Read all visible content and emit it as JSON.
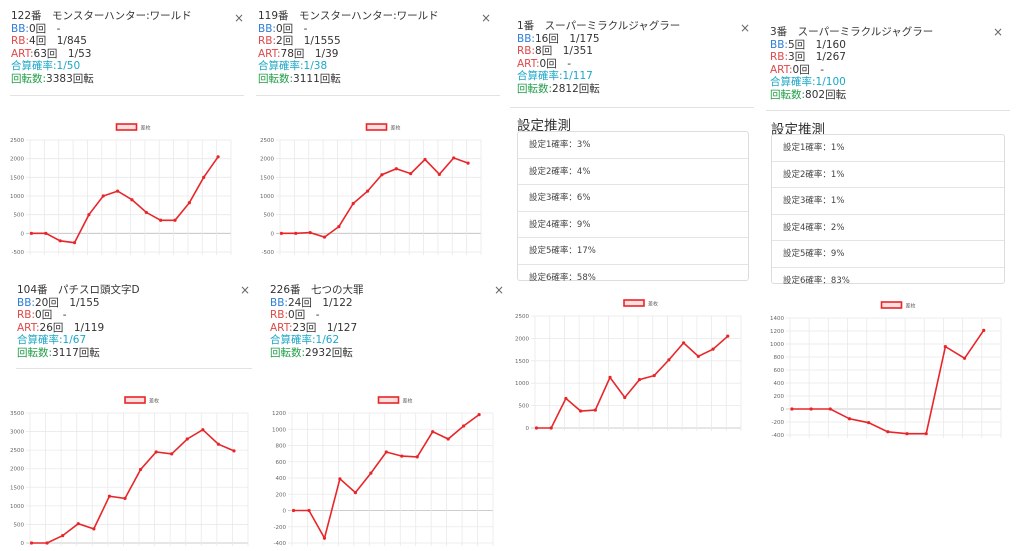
{
  "colors": {
    "bb": "#2e7dd8",
    "rb": "#e04848",
    "art": "#e04848",
    "prob": "#1aa7c8",
    "spin": "#1f9c46",
    "line": "#e8262a",
    "grid": "#e9e9e9"
  },
  "icons": {
    "close": "close-icon"
  },
  "cards": [
    {
      "title": "122番　モンスターハンター:ワールド",
      "bb_label": "BB:",
      "bb_value": "0回　-",
      "rb_label": "RB:",
      "rb_value": "4回　1/845",
      "art_label": "ART:",
      "art_value": "63回　1/53",
      "prob_label": "合算確率:",
      "prob_value": "1/50",
      "spin_label": "回転数:",
      "spin_value": "3383回転",
      "close": "×"
    },
    {
      "title": "119番　モンスターハンター:ワールド",
      "bb_label": "BB:",
      "bb_value": "0回　-",
      "rb_label": "RB:",
      "rb_value": "2回　1/1555",
      "art_label": "ART:",
      "art_value": "78回　1/39",
      "prob_label": "合算確率:",
      "prob_value": "1/38",
      "spin_label": "回転数:",
      "spin_value": "3111回転",
      "close": "×"
    },
    {
      "title": "1番　スーパーミラクルジャグラー",
      "bb_label": "BB:",
      "bb_value": "16回　1/175",
      "rb_label": "RB:",
      "rb_value": "8回　1/351",
      "art_label": "ART:",
      "art_value": "0回　-",
      "prob_label": "合算確率:",
      "prob_value": "1/117",
      "spin_label": "回転数:",
      "spin_value": "2812回転",
      "close": "×",
      "estimate_title": "設定推測",
      "estimates": [
        "設定1確率：3%",
        "設定2確率：4%",
        "設定3確率：6%",
        "設定4確率：9%",
        "設定5確率：17%",
        "設定6確率：58%"
      ]
    },
    {
      "title": "3番　スーパーミラクルジャグラー",
      "bb_label": "BB:",
      "bb_value": "5回　1/160",
      "rb_label": "RB:",
      "rb_value": "3回　1/267",
      "art_label": "ART:",
      "art_value": "0回　-",
      "prob_label": "合算確率:",
      "prob_value": "1/100",
      "spin_label": "回転数:",
      "spin_value": "802回転",
      "close": "×",
      "estimate_title": "設定推測",
      "estimates": [
        "設定1確率：1%",
        "設定2確率：1%",
        "設定3確率：1%",
        "設定4確率：2%",
        "設定5確率：9%",
        "設定6確率：83%"
      ]
    },
    {
      "title": "104番　パチスロ頭文字D",
      "bb_label": "BB:",
      "bb_value": "20回　1/155",
      "rb_label": "RB:",
      "rb_value": "0回　-",
      "art_label": "ART:",
      "art_value": "26回　1/119",
      "prob_label": "合算確率:",
      "prob_value": "1/67",
      "spin_label": "回転数:",
      "spin_value": "3117回転",
      "close": "×"
    },
    {
      "title": "226番　七つの大罪",
      "bb_label": "BB:",
      "bb_value": "24回　1/122",
      "rb_label": "RB:",
      "rb_value": "0回　-",
      "art_label": "ART:",
      "art_value": "23回　1/127",
      "prob_label": "合算確率:",
      "prob_value": "1/62",
      "spin_label": "回転数:",
      "spin_value": "2932回転",
      "close": "×"
    }
  ],
  "chart_data": [
    {
      "type": "line",
      "title": "",
      "legend": "差枚",
      "legend_position": "top",
      "ylim": [
        -500,
        2500
      ],
      "yticks": [
        2500,
        2000,
        1500,
        1000,
        500,
        0,
        -500
      ],
      "series": [
        {
          "name": "差枚",
          "values": [
            0,
            0,
            -200,
            -250,
            500,
            1000,
            1130,
            900,
            560,
            350,
            350,
            820,
            1500,
            2050
          ]
        }
      ]
    },
    {
      "type": "line",
      "title": "",
      "legend": "差枚",
      "legend_position": "top",
      "ylim": [
        -500,
        2500
      ],
      "yticks": [
        2500,
        2000,
        1500,
        1000,
        500,
        0,
        -500
      ],
      "series": [
        {
          "name": "差枚",
          "values": [
            0,
            0,
            20,
            -100,
            180,
            800,
            1130,
            1570,
            1730,
            1600,
            1980,
            1580,
            2020,
            1880
          ]
        }
      ]
    },
    {
      "type": "line",
      "title": "",
      "legend": "差枚",
      "legend_position": "top",
      "ylim": [
        0,
        2500
      ],
      "yticks": [
        2500,
        2000,
        1500,
        1000,
        500,
        0
      ],
      "series": [
        {
          "name": "差枚",
          "values": [
            0,
            0,
            660,
            380,
            400,
            1130,
            680,
            1080,
            1170,
            1520,
            1900,
            1600,
            1760,
            2050
          ]
        }
      ]
    },
    {
      "type": "line",
      "title": "",
      "legend": "差枚",
      "legend_position": "top",
      "ylim": [
        -400,
        1400
      ],
      "yticks": [
        1400,
        1200,
        1000,
        800,
        600,
        400,
        200,
        0,
        -200,
        -400
      ],
      "series": [
        {
          "name": "差枚",
          "values": [
            0,
            0,
            0,
            -150,
            -210,
            -350,
            -380,
            -380,
            960,
            780,
            1210
          ]
        }
      ]
    },
    {
      "type": "line",
      "title": "",
      "legend": "差枚",
      "legend_position": "top",
      "ylim": [
        0,
        3500
      ],
      "yticks": [
        3500,
        3000,
        2500,
        2000,
        1500,
        1000,
        500,
        0
      ],
      "series": [
        {
          "name": "差枚",
          "values": [
            0,
            0,
            200,
            520,
            380,
            1260,
            1200,
            1980,
            2450,
            2400,
            2800,
            3050,
            2660,
            2480
          ]
        }
      ]
    },
    {
      "type": "line",
      "title": "",
      "legend": "差枚",
      "legend_position": "top",
      "ylim": [
        -400,
        1200
      ],
      "yticks": [
        1200,
        1000,
        800,
        600,
        400,
        200,
        0,
        -200,
        -400
      ],
      "series": [
        {
          "name": "差枚",
          "values": [
            0,
            0,
            -340,
            390,
            220,
            460,
            720,
            670,
            660,
            970,
            880,
            1040,
            1180
          ]
        }
      ]
    }
  ]
}
